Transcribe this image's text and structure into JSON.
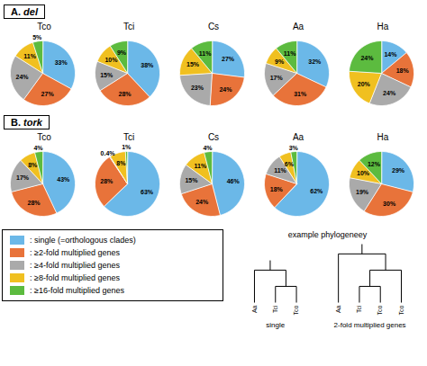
{
  "chart_data": [
    {
      "type": "pie",
      "title": "A. del",
      "categories": [
        ": single (=orthologous clades)",
        ": ≥2-fold multiplied genes",
        ": ≥4-fold multiplied genes",
        ": ≥8-fold multiplied genes",
        ": ≥16-fold multiplied genes"
      ],
      "colors": [
        "#6BB8E8",
        "#E8733A",
        "#AAAAAA",
        "#F0C020",
        "#5CBB3F"
      ],
      "data_labels": true,
      "series": [
        {
          "name": "Tco",
          "values": [
            33,
            27,
            24,
            11,
            5
          ],
          "value_labels": [
            "33%",
            "27%",
            "24%",
            "11%",
            "5%"
          ]
        },
        {
          "name": "Tci",
          "values": [
            38,
            28,
            15,
            10,
            9
          ],
          "value_labels": [
            "38%",
            "28%",
            "15%",
            "10%",
            "9%"
          ]
        },
        {
          "name": "Cs",
          "values": [
            27,
            24,
            23,
            15,
            11
          ],
          "value_labels": [
            "27%",
            "24%",
            "23%",
            "15%",
            "11%"
          ]
        },
        {
          "name": "Aa",
          "values": [
            32,
            31,
            17,
            9,
            11
          ],
          "value_labels": [
            "32%",
            "31%",
            "17%",
            "9%",
            "11%"
          ]
        },
        {
          "name": "Ha",
          "values": [
            14,
            18,
            24,
            20,
            24
          ],
          "value_labels": [
            "14%",
            "18%",
            "24%",
            "20%",
            "24%"
          ]
        }
      ]
    },
    {
      "type": "pie",
      "title": "B. tork",
      "categories": [
        ": single (=orthologous clades)",
        ": ≥2-fold multiplied genes",
        ": ≥4-fold multiplied genes",
        ": ≥8-fold multiplied genes",
        ": ≥16-fold multiplied genes"
      ],
      "colors": [
        "#6BB8E8",
        "#E8733A",
        "#AAAAAA",
        "#F0C020",
        "#5CBB3F"
      ],
      "data_labels": true,
      "series": [
        {
          "name": "Tco",
          "values": [
            43,
            28,
            17,
            8,
            4
          ],
          "value_labels": [
            "43%",
            "28%",
            "17%",
            "8%",
            "4%"
          ]
        },
        {
          "name": "Tci",
          "values": [
            63,
            28,
            0.4,
            8,
            1
          ],
          "value_labels": [
            "63%",
            "28%",
            "0.4%",
            "8%",
            "1%"
          ]
        },
        {
          "name": "Cs",
          "values": [
            46,
            24,
            15,
            11,
            4
          ],
          "value_labels": [
            "46%",
            "24%",
            "15%",
            "11%",
            "4%"
          ]
        },
        {
          "name": "Aa",
          "values": [
            62,
            18,
            11,
            6,
            3
          ],
          "value_labels": [
            "62%",
            "18%",
            "11%",
            "6%",
            "3%"
          ]
        },
        {
          "name": "Ha",
          "values": [
            29,
            30,
            19,
            10,
            12
          ],
          "value_labels": [
            "29%",
            "30%",
            "19%",
            "10%",
            "12%"
          ]
        }
      ]
    },
    {
      "type": "tree",
      "title": "example phylogeneey",
      "series": [
        {
          "name": "single",
          "categories": [
            "Aa",
            "Tci",
            "Tco"
          ]
        },
        {
          "name": "2-fold multiplied genes",
          "categories": [
            "Aa",
            "Tci",
            "Tco",
            "Tco"
          ]
        }
      ]
    }
  ]
}
